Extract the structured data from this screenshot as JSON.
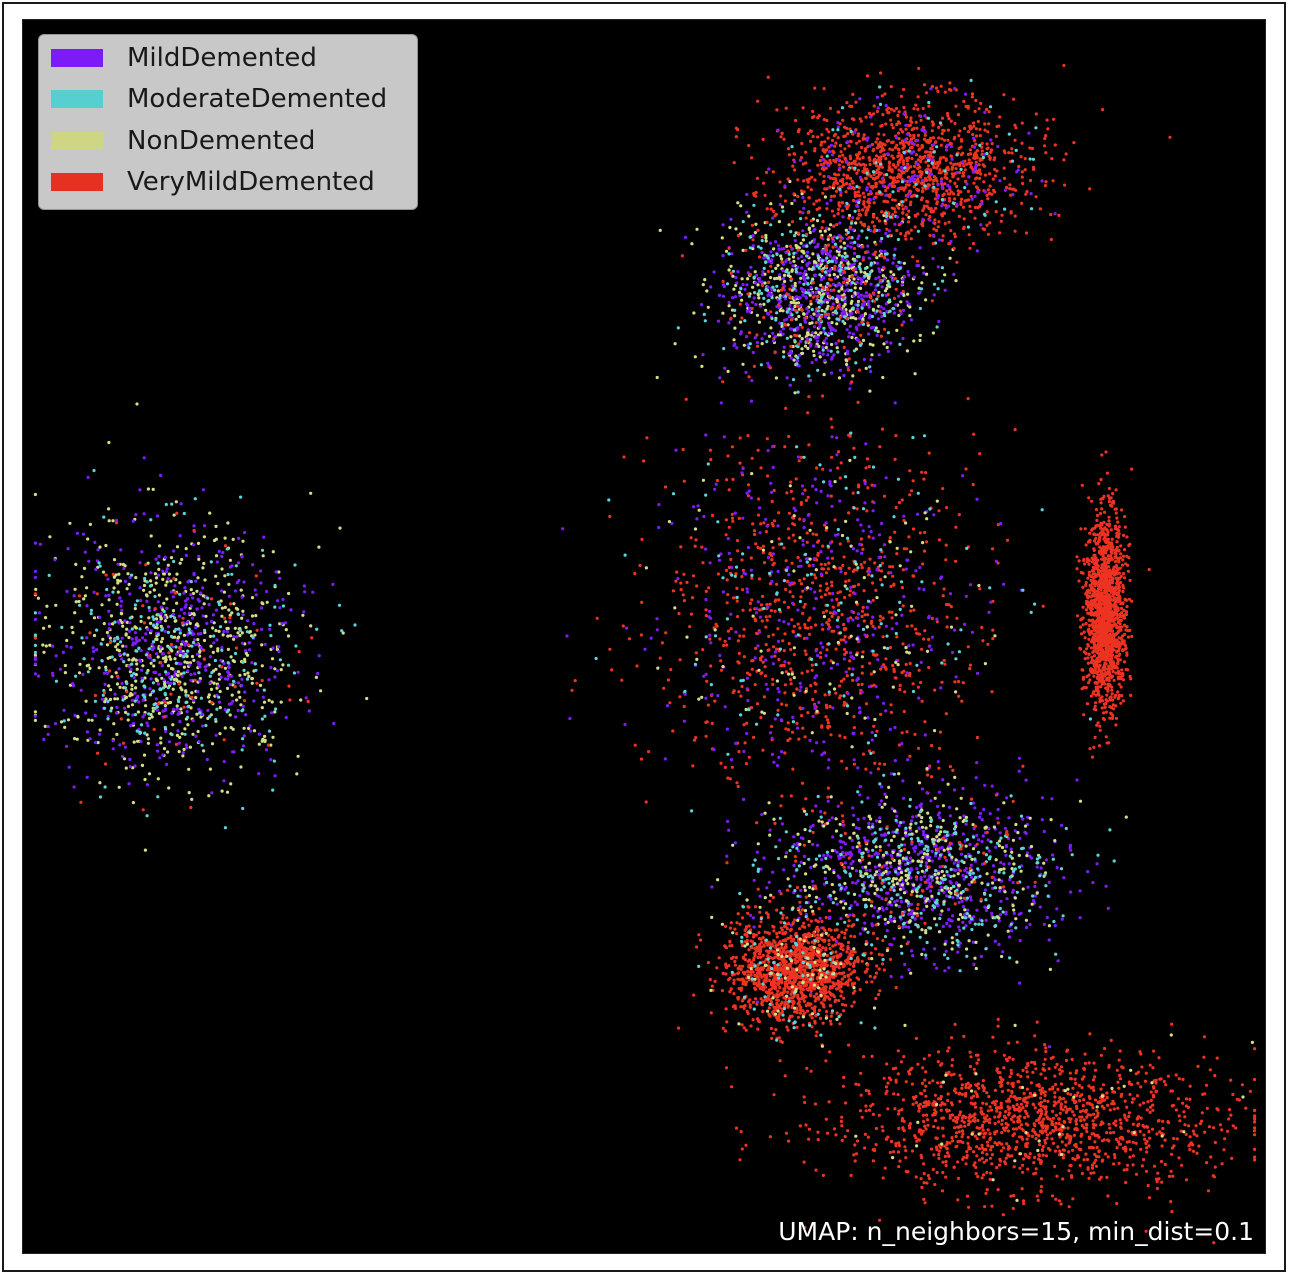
{
  "chart_data": {
    "type": "scatter",
    "title": "",
    "xlabel": "",
    "ylabel": "",
    "axes_visible": false,
    "background": "#000000",
    "annotation": "UMAP: n_neighbors=15, min_dist=0.1",
    "legend": {
      "placement": "top-left",
      "entries": [
        {
          "label": "MildDemented",
          "color": "#7f1cff"
        },
        {
          "label": "ModerateDemented",
          "color": "#5ad6d8"
        },
        {
          "label": "NonDemented",
          "color": "#d6dd88"
        },
        {
          "label": "VeryMildDemented",
          "color": "#ee3322"
        }
      ]
    },
    "clusters": [
      {
        "name": "left-dome",
        "center": [
          0.12,
          0.51
        ],
        "spread": [
          0.09,
          0.09
        ],
        "mix": {
          "NonDemented": 0.45,
          "MildDemented": 0.35,
          "ModerateDemented": 0.15,
          "VeryMildDemented": 0.05
        }
      },
      {
        "name": "upper-middle",
        "center": [
          0.64,
          0.22
        ],
        "spread": [
          0.07,
          0.06
        ],
        "mix": {
          "NonDemented": 0.35,
          "MildDemented": 0.4,
          "ModerateDemented": 0.15,
          "VeryMildDemented": 0.1
        }
      },
      {
        "name": "top-fringe",
        "center": [
          0.71,
          0.12
        ],
        "spread": [
          0.09,
          0.05
        ],
        "mix": {
          "VeryMildDemented": 0.85,
          "MildDemented": 0.1,
          "ModerateDemented": 0.05
        }
      },
      {
        "name": "central-mass",
        "center": [
          0.64,
          0.48
        ],
        "spread": [
          0.12,
          0.13
        ],
        "mix": {
          "VeryMildDemented": 0.6,
          "MildDemented": 0.25,
          "ModerateDemented": 0.08,
          "NonDemented": 0.07
        }
      },
      {
        "name": "lower-middle",
        "center": [
          0.72,
          0.69
        ],
        "spread": [
          0.1,
          0.06
        ],
        "mix": {
          "MildDemented": 0.5,
          "NonDemented": 0.25,
          "ModerateDemented": 0.2,
          "VeryMildDemented": 0.05
        }
      },
      {
        "name": "lower-left-fringe",
        "center": [
          0.62,
          0.77
        ],
        "spread": [
          0.05,
          0.04
        ],
        "mix": {
          "VeryMildDemented": 0.9,
          "ModerateDemented": 0.05,
          "NonDemented": 0.05
        }
      },
      {
        "name": "right-strand",
        "center": [
          0.87,
          0.48
        ],
        "spread": [
          0.015,
          0.07
        ],
        "mix": {
          "VeryMildDemented": 1.0
        }
      },
      {
        "name": "bottom-right-band",
        "center": [
          0.81,
          0.89
        ],
        "spread": [
          0.14,
          0.05
        ],
        "mix": {
          "VeryMildDemented": 0.97,
          "NonDemented": 0.03
        }
      }
    ]
  }
}
